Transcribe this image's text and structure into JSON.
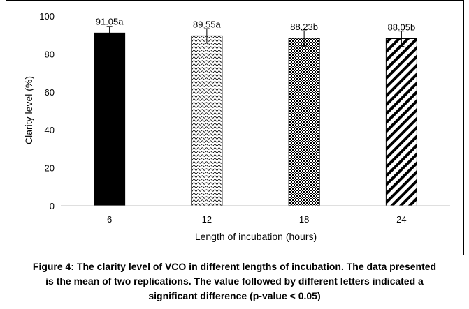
{
  "chart_data": {
    "type": "bar",
    "categories": [
      "6",
      "12",
      "18",
      "24"
    ],
    "values": [
      91.05,
      89.55,
      88.23,
      88.05
    ],
    "data_labels": [
      "91.05a",
      "89.55a",
      "88.23b",
      "88.05b"
    ],
    "error": [
      3.5,
      3.8,
      4.0,
      4.0
    ],
    "xlabel": "Length of incubation (hours)",
    "ylabel": "Clarity level (%)",
    "ylim": [
      0,
      100
    ],
    "yticks": [
      0,
      20,
      40,
      60,
      80,
      100
    ],
    "grid": false,
    "legend": "none",
    "bar_fills": [
      "solid-black",
      "wave-pattern",
      "checker-pattern",
      "diagonal-stripes"
    ]
  },
  "caption": {
    "line1": "Figure 4: The clarity level of VCO in different lengths of incubation. The data presented",
    "line2": "is the mean of two replications. The value followed by different letters indicated a",
    "line3": "significant difference (p-value < 0.05)"
  }
}
